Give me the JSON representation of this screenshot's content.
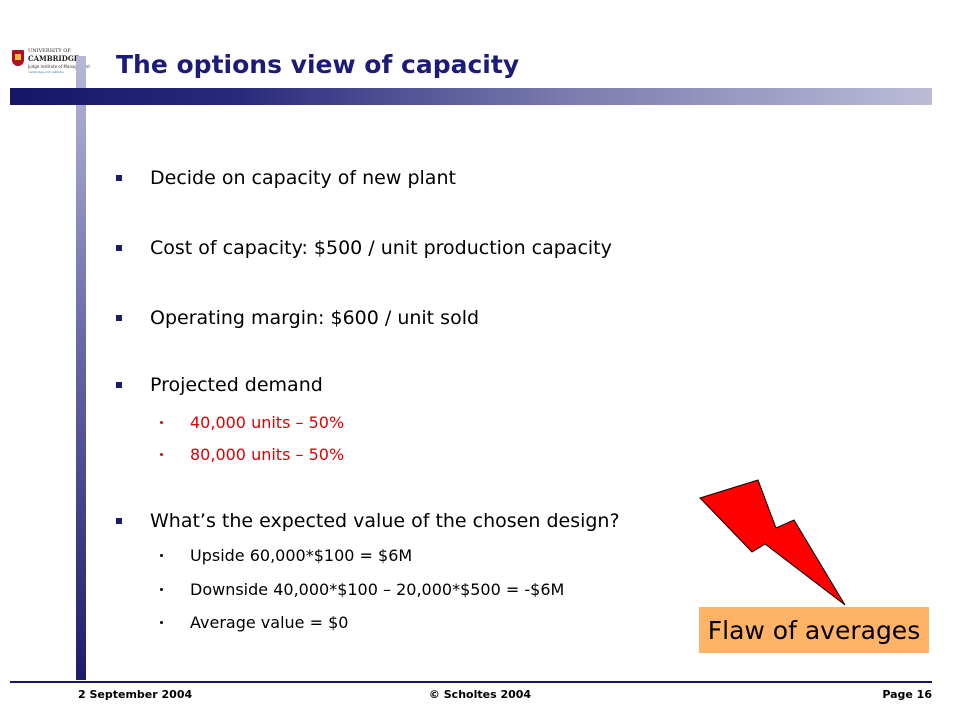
{
  "logo": {
    "line1": "UNIVERSITY OF",
    "line2": "CAMBRIDGE",
    "line3": "Judge Institute of Management",
    "line4": "cambridge-mit institute"
  },
  "slide": {
    "title": "The options view of capacity"
  },
  "bullets": [
    {
      "text": "Decide on capacity of new plant",
      "sub": []
    },
    {
      "text": "Cost of capacity: $500 / unit production capacity",
      "sub": []
    },
    {
      "text": "Operating margin: $600 / unit sold",
      "sub": []
    },
    {
      "text": "Projected demand",
      "sub": [
        "40,000 units – 50%",
        "80,000 units – 50%"
      ]
    },
    {
      "text": "What’s the expected value of the chosen design?",
      "sub": [
        "Upside 60,000*$100 = $6M",
        "Downside 40,000*$100 – 20,000*$500 = -$6M",
        "Average value = $0"
      ]
    }
  ],
  "callout": {
    "label": "Flaw of averages",
    "icon": "lightning-bolt-icon",
    "bolt_color": "#ff0000",
    "box_color": "#ffb366"
  },
  "footer": {
    "date": "2 September 2004",
    "copyright": "© Scholtes 2004",
    "page": "Page 16"
  },
  "colors": {
    "title": "#1c1c78",
    "accent": "#15156a",
    "highlight_text": "#e00000"
  }
}
